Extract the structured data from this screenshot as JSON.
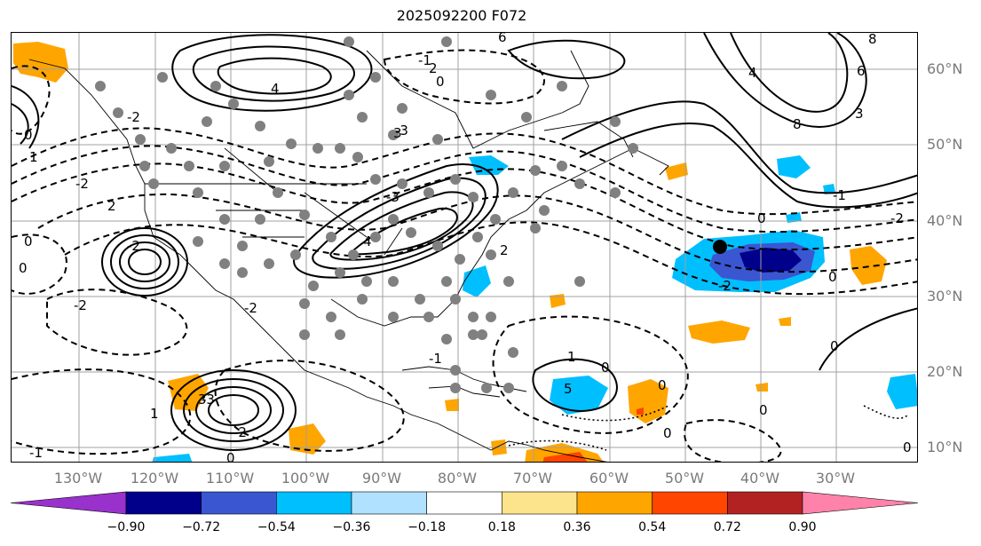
{
  "title": "2025092200 F072",
  "lat_labels": [
    {
      "text": "60°N",
      "lat": 60
    },
    {
      "text": "50°N",
      "lat": 50
    },
    {
      "text": "40°N",
      "lat": 40
    },
    {
      "text": "30°N",
      "lat": 30
    },
    {
      "text": "20°N",
      "lat": 20
    },
    {
      "text": "10°N",
      "lat": 10
    }
  ],
  "lon_labels": [
    {
      "text": "130°W",
      "lon": -130
    },
    {
      "text": "120°W",
      "lon": -120
    },
    {
      "text": "110°W",
      "lon": -110
    },
    {
      "text": "100°W",
      "lon": -100
    },
    {
      "text": "90°W",
      "lon": -90
    },
    {
      "text": "80°W",
      "lon": -80
    },
    {
      "text": "70°W",
      "lon": -70
    },
    {
      "text": "60°W",
      "lon": -60
    },
    {
      "text": "50°W",
      "lon": -50
    },
    {
      "text": "40°W",
      "lon": -40
    },
    {
      "text": "30°W",
      "lon": -30
    }
  ],
  "colorbar": {
    "colors": [
      "#9932cc",
      "#00008b",
      "#3a56d0",
      "#00bfff",
      "#b0e2ff",
      "#ffffff",
      "#fce48c",
      "#ffa500",
      "#ff4500",
      "#b22222",
      "#ff82ab"
    ],
    "ticks": [
      "−0.90",
      "−0.72",
      "−0.54",
      "−0.36",
      "−0.18",
      "0.18",
      "0.36",
      "0.54",
      "0.72",
      "0.90"
    ]
  },
  "contour_labels": [
    "4",
    "6",
    "8",
    "4",
    "8",
    "6",
    "3",
    "2",
    "0",
    "-1",
    "-2",
    "-3",
    "4",
    "-3",
    "-2",
    "2",
    "-2",
    "1",
    "0",
    "0",
    "0",
    "-2",
    "3",
    "1",
    "0",
    "-1",
    "5",
    "0",
    "0",
    "-1",
    "2",
    "3",
    "-2",
    "-2",
    "0",
    "0",
    "-2",
    "-1",
    "0",
    "1",
    "-2",
    "0",
    "-3",
    "0",
    "0"
  ]
}
